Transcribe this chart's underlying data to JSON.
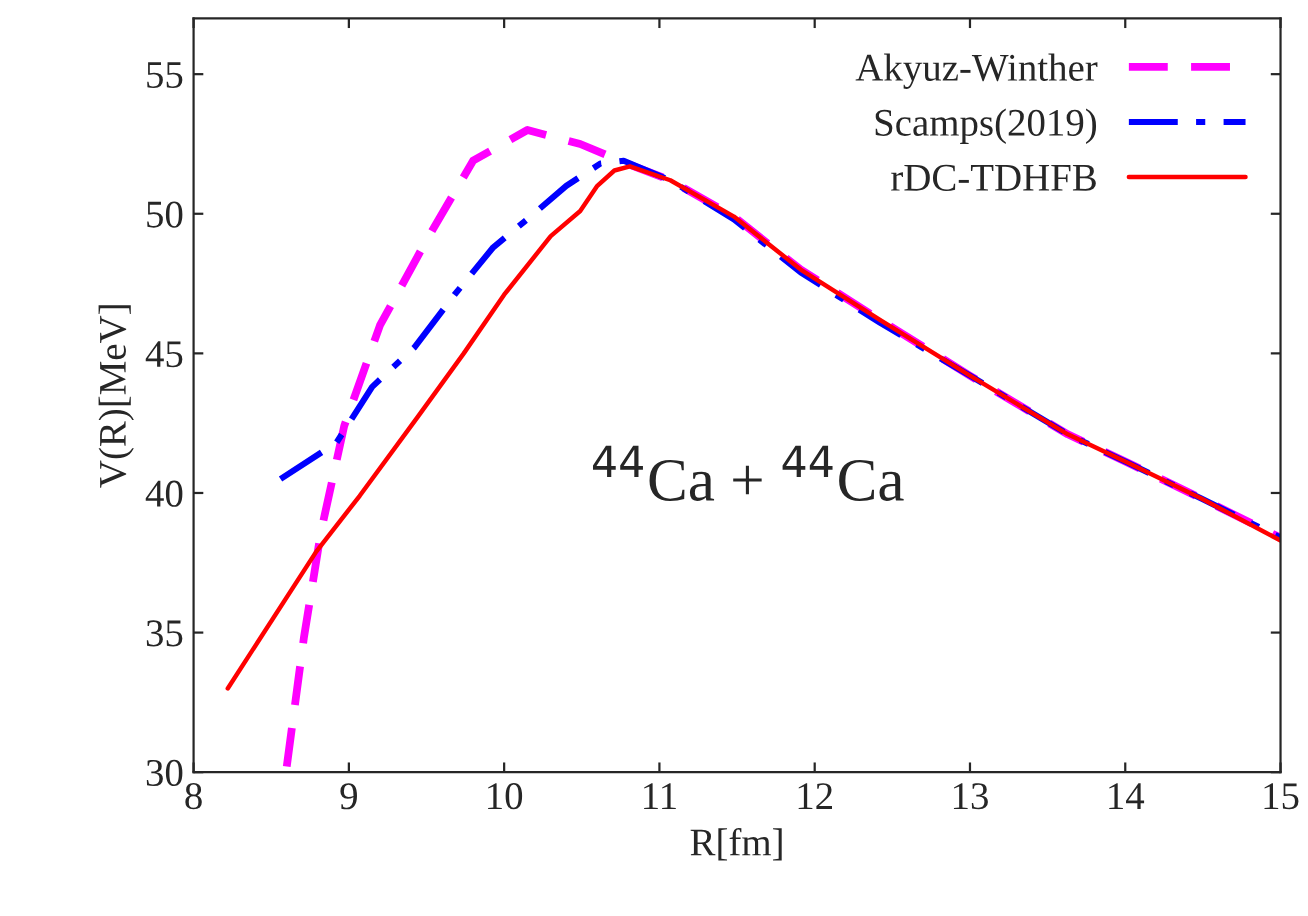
{
  "chart_data": {
    "type": "line",
    "xlabel": "R[fm]",
    "ylabel": "V(R)[MeV]",
    "xlim": [
      8,
      15
    ],
    "ylim": [
      30,
      57
    ],
    "xticks": [
      8,
      9,
      10,
      11,
      12,
      13,
      14,
      15
    ],
    "yticks": [
      30,
      35,
      40,
      45,
      50,
      55
    ],
    "grid": false,
    "legend": "top right",
    "marker": "none",
    "annotations": [
      "$^{44}$Ca + $^{44}$Ca"
    ],
    "series": [
      {
        "name": "Akyuz-Winther",
        "color": "#ff00ff",
        "line_style": "dashed",
        "x": [
          8.6,
          8.71,
          8.82,
          8.97,
          9.2,
          9.5,
          9.8,
          10.15,
          10.49,
          10.79,
          11.07,
          11.48,
          11.91,
          12.42,
          13.0,
          13.63,
          14.01,
          14.49,
          15.0
        ],
        "values": [
          30.2,
          34.8,
          38.6,
          42.4,
          46.0,
          49.05,
          51.9,
          53.0,
          52.5,
          51.8,
          51.2,
          49.9,
          48.0,
          46.2,
          44.2,
          42.1,
          41.1,
          39.8,
          38.4
        ]
      },
      {
        "name": "Scamps(2019)",
        "color": "#0000ff",
        "line_style": "dashdot",
        "x": [
          8.56,
          8.92,
          9.15,
          9.42,
          9.68,
          9.93,
          10.17,
          10.4,
          10.62,
          10.77,
          11.07,
          11.48,
          11.91,
          12.42,
          13.0,
          13.63,
          14.01,
          14.49,
          15.0
        ],
        "values": [
          40.5,
          41.8,
          43.8,
          45.2,
          47.1,
          48.8,
          49.9,
          51.0,
          51.8,
          51.9,
          51.2,
          49.8,
          47.9,
          46.1,
          44.2,
          42.1,
          41.1,
          39.8,
          38.4
        ]
      },
      {
        "name": "rDC-TDHFB",
        "color": "#ff0000",
        "line_style": "solid",
        "x": [
          8.22,
          8.79,
          9.07,
          9.44,
          9.74,
          10.0,
          10.3,
          10.49,
          10.6,
          10.71,
          10.81,
          11.07,
          11.48,
          11.91,
          12.42,
          13.0,
          13.63,
          14.01,
          14.49,
          15.0
        ],
        "values": [
          33.0,
          37.9,
          39.9,
          42.7,
          45.0,
          47.1,
          49.2,
          50.1,
          51.0,
          51.55,
          51.7,
          51.2,
          49.9,
          48.0,
          46.2,
          44.2,
          42.1,
          41.1,
          39.8,
          38.3
        ]
      }
    ]
  }
}
